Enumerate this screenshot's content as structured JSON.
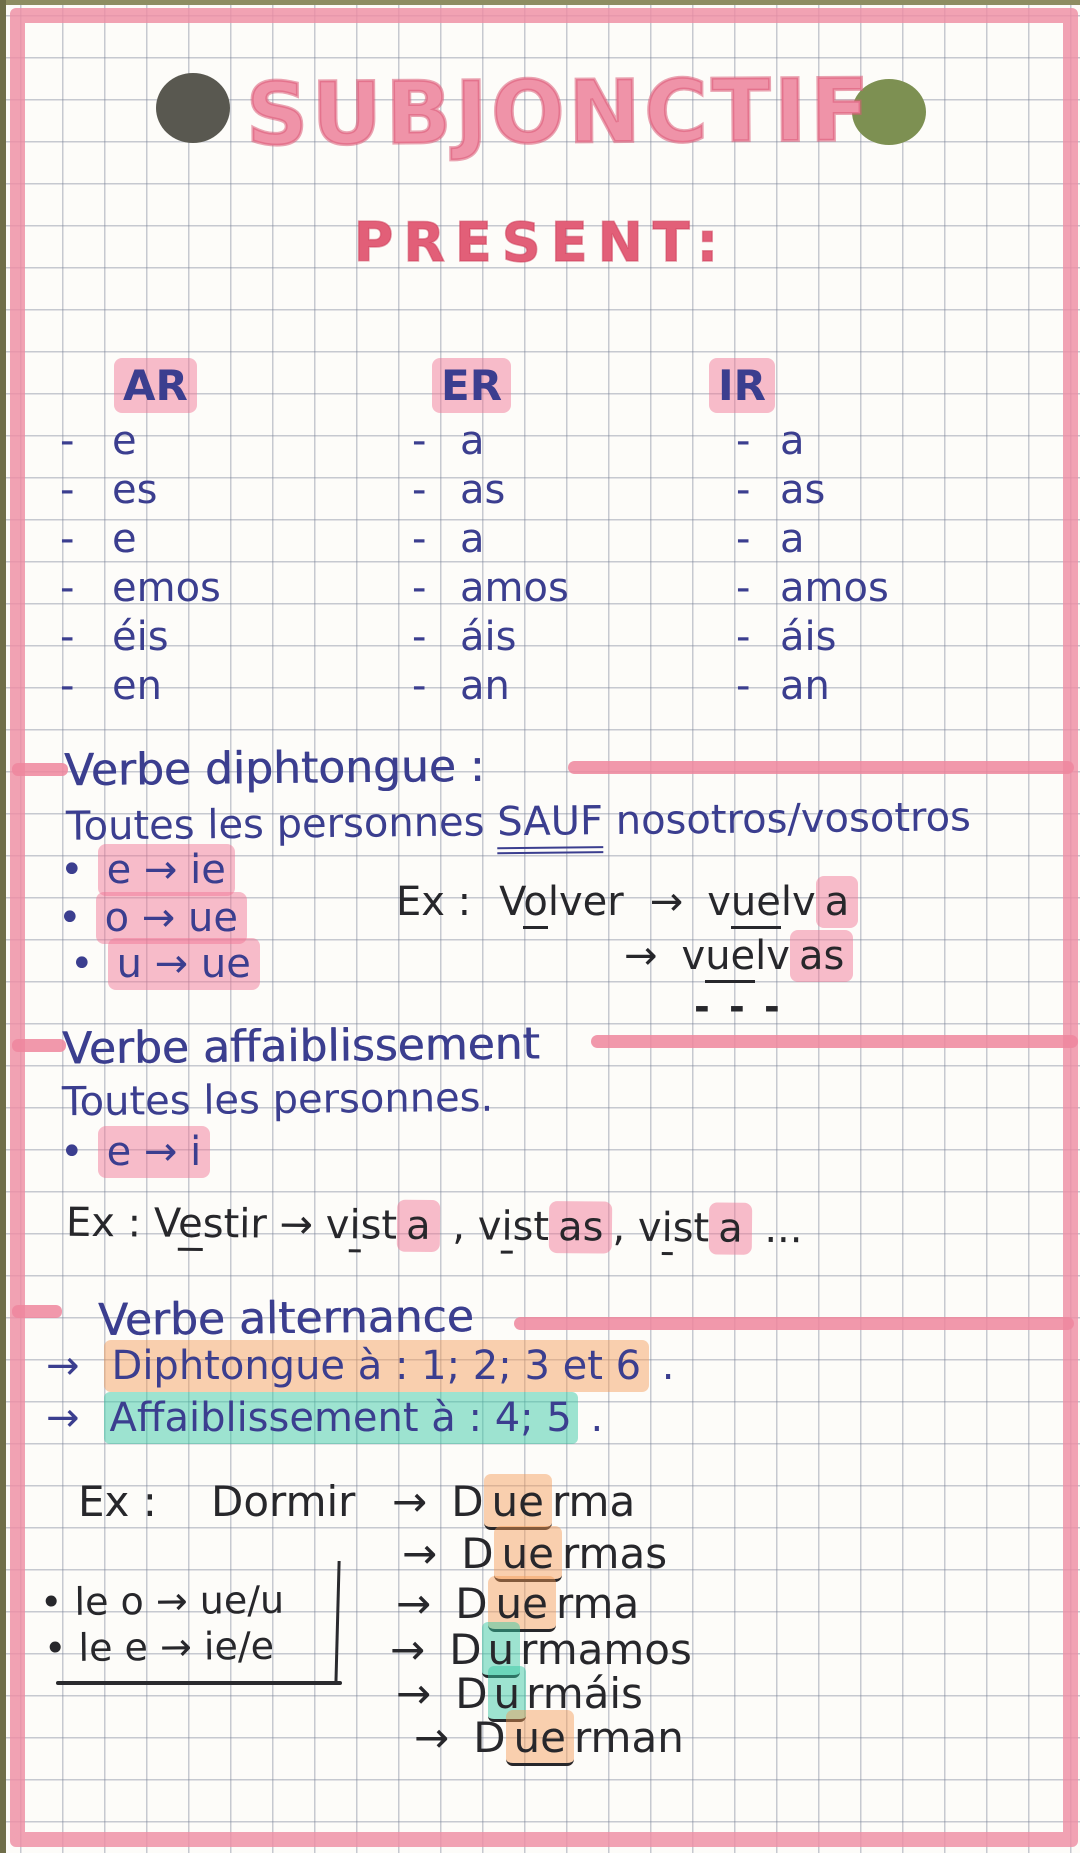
{
  "colors": {
    "dot_left": "#595850",
    "dot_right": "#7d9052",
    "ink_blue": "#3b3e8f",
    "ink_black": "#27272b",
    "marker_pink": "#ee8da3",
    "hl_pink": "#f3a9bb",
    "hl_orange": "#f6c197",
    "hl_teal": "#86ddc6"
  },
  "header": {
    "title": "SUBJONCTIF",
    "subtitle": "PRESENT:"
  },
  "table": {
    "dash": "-",
    "columns": [
      {
        "header": "AR",
        "endings": [
          "e",
          "es",
          "e",
          "emos",
          "éis",
          "en"
        ]
      },
      {
        "header": "ER",
        "endings": [
          "a",
          "as",
          "a",
          "amos",
          "áis",
          "an"
        ]
      },
      {
        "header": "IR",
        "endings": [
          "a",
          "as",
          "a",
          "amos",
          "áis",
          "an"
        ]
      }
    ]
  },
  "diphtongue": {
    "heading": "Verbe diphtongue :",
    "intro": [
      {
        "t": "Toutes les personnes "
      },
      {
        "t": "SAUF",
        "u": 2
      },
      {
        "t": " nosotros/vosotros"
      }
    ],
    "bullet": "•",
    "rules": [
      "e → ie",
      "o → ue",
      "u → ue"
    ],
    "example": {
      "label": "Ex :",
      "verb": [
        {
          "t": "V"
        },
        {
          "t": "o",
          "u": 1
        },
        {
          "t": "lver"
        }
      ],
      "arrow": "→",
      "result1": [
        {
          "t": "v"
        },
        {
          "t": "ue",
          "u": 1
        },
        {
          "t": "lv"
        },
        {
          "t": "a",
          "hl": "pink"
        }
      ],
      "result2": [
        {
          "t": "v"
        },
        {
          "t": "ue",
          "u": 1
        },
        {
          "t": "lv"
        },
        {
          "t": "as",
          "hl": "pink"
        }
      ],
      "ellipsis": "- - -"
    }
  },
  "affaiblissement": {
    "heading": "Verbe affaiblissement",
    "intro": "Toutes les personnes.",
    "bullet": "•",
    "rule": "e → i",
    "example": [
      {
        "t": "Ex : "
      },
      {
        "t": "V"
      },
      {
        "t": "e",
        "u": 1
      },
      {
        "t": "stir"
      },
      {
        "t": " → "
      },
      {
        "t": "v"
      },
      {
        "t": "i",
        "u": 1
      },
      {
        "t": "st"
      },
      {
        "t": "a",
        "hl": "pink"
      },
      {
        "t": " , "
      },
      {
        "t": "v"
      },
      {
        "t": "i",
        "u": 1
      },
      {
        "t": "st"
      },
      {
        "t": "as",
        "hl": "pink"
      },
      {
        "t": ", "
      },
      {
        "t": "v"
      },
      {
        "t": "i",
        "u": 1
      },
      {
        "t": "st"
      },
      {
        "t": "a",
        "hl": "pink"
      },
      {
        "t": " ..."
      }
    ]
  },
  "alternance": {
    "heading": "Verbe alternance",
    "arrow": "→",
    "rule1": [
      {
        "t": "Diphtongue à : 1; 2; 3 et 6",
        "hl": "orange"
      },
      {
        "t": " ."
      }
    ],
    "rule2": [
      {
        "t": "Affaiblissement à : 4; 5",
        "hl": "teal"
      },
      {
        "t": " ."
      }
    ],
    "example_label": "Ex :",
    "example_verb": "Dormir",
    "side_notes": [
      "• le o → ue/u",
      "• le e → ie/e"
    ],
    "conjugations": [
      [
        {
          "t": "D"
        },
        {
          "t": "ue",
          "hl": "orange",
          "u": 1
        },
        {
          "t": "rma"
        }
      ],
      [
        {
          "t": "D"
        },
        {
          "t": "ue",
          "hl": "orange",
          "u": 1
        },
        {
          "t": "rmas"
        }
      ],
      [
        {
          "t": "D"
        },
        {
          "t": "ue",
          "hl": "orange",
          "u": 1
        },
        {
          "t": "rma"
        }
      ],
      [
        {
          "t": "D"
        },
        {
          "t": "u",
          "hl": "teal",
          "u": 1
        },
        {
          "t": "rmamos"
        }
      ],
      [
        {
          "t": "D"
        },
        {
          "t": "u",
          "hl": "teal",
          "u": 1
        },
        {
          "t": "rmáis"
        }
      ],
      [
        {
          "t": "D"
        },
        {
          "t": "ue",
          "hl": "orange",
          "u": 1
        },
        {
          "t": "rman"
        }
      ]
    ]
  }
}
